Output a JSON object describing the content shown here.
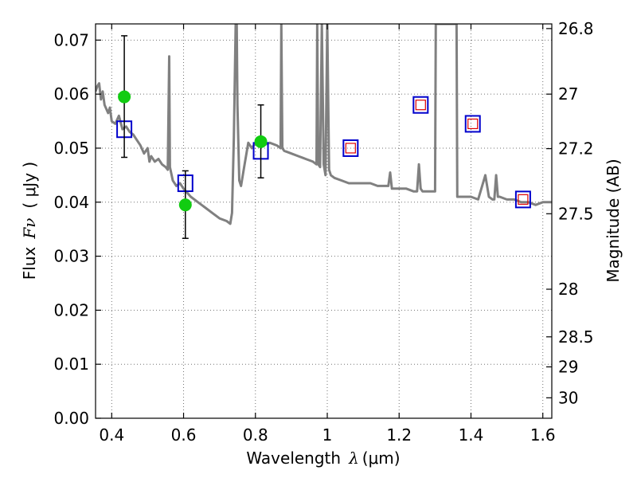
{
  "chart_data": {
    "type": "scatter",
    "xlabel": "Wavelength",
    "xlabel_math": "λ",
    "xlabel_unit": "(μm)",
    "ylabel": "Flux",
    "ylabel_math": "Fν",
    "ylabel_unit": "( μJy )",
    "y2label": "Magnitude (AB)",
    "xlim": [
      0.355,
      1.625
    ],
    "ylim": [
      0.0,
      0.073
    ],
    "x_ticks": [
      0.4,
      0.6,
      0.8,
      1.0,
      1.2,
      1.4,
      1.6
    ],
    "x_tick_labels": [
      "0.4",
      "0.6",
      "0.8",
      "1",
      "1.2",
      "1.4",
      "1.6"
    ],
    "y_ticks": [
      0.0,
      0.01,
      0.02,
      0.03,
      0.04,
      0.05,
      0.06,
      0.07
    ],
    "y_tick_labels": [
      "0.00",
      "0.01",
      "0.02",
      "0.03",
      "0.04",
      "0.05",
      "0.06",
      "0.07"
    ],
    "mag_ticks": [
      26.8,
      27,
      27.2,
      27.5,
      28,
      28.5,
      29,
      30
    ],
    "mag_tick_labels": [
      "26.8",
      "27",
      "27.2",
      "27.5",
      "28",
      "28.5",
      "29",
      "30"
    ],
    "grid": true,
    "colors": {
      "sed": "#808080",
      "observed": "#11cc11",
      "model_box": "#0000cc",
      "model_inner": "#dd0000",
      "errorbar": "#000000"
    },
    "series": [
      {
        "name": "SED model spectrum",
        "kind": "line",
        "x": [
          0.355,
          0.36,
          0.365,
          0.37,
          0.375,
          0.38,
          0.39,
          0.395,
          0.4,
          0.41,
          0.42,
          0.43,
          0.44,
          0.45,
          0.46,
          0.47,
          0.48,
          0.49,
          0.5,
          0.505,
          0.51,
          0.52,
          0.53,
          0.54,
          0.55,
          0.556,
          0.56,
          0.562,
          0.57,
          0.58,
          0.59,
          0.6,
          0.62,
          0.64,
          0.66,
          0.68,
          0.7,
          0.72,
          0.73,
          0.735,
          0.74,
          0.745,
          0.748,
          0.75,
          0.755,
          0.76,
          0.77,
          0.78,
          0.79,
          0.8,
          0.82,
          0.84,
          0.86,
          0.87,
          0.872,
          0.875,
          0.88,
          0.9,
          0.92,
          0.94,
          0.96,
          0.97,
          0.972,
          0.975,
          0.98,
          0.985,
          0.99,
          0.995,
          1.0,
          1.005,
          1.01,
          1.02,
          1.04,
          1.06,
          1.08,
          1.1,
          1.12,
          1.14,
          1.16,
          1.17,
          1.175,
          1.18,
          1.19,
          1.2,
          1.22,
          1.24,
          1.25,
          1.255,
          1.26,
          1.265,
          1.27,
          1.29,
          1.3,
          1.302,
          1.31,
          1.32,
          1.34,
          1.36,
          1.362,
          1.37,
          1.38,
          1.4,
          1.42,
          1.44,
          1.45,
          1.46,
          1.465,
          1.47,
          1.475,
          1.48,
          1.5,
          1.52,
          1.54,
          1.56,
          1.58,
          1.6,
          1.625
        ],
        "y": [
          0.0605,
          0.0615,
          0.062,
          0.059,
          0.0605,
          0.058,
          0.0565,
          0.0575,
          0.055,
          0.0545,
          0.056,
          0.0535,
          0.054,
          0.053,
          0.0525,
          0.0515,
          0.0505,
          0.049,
          0.05,
          0.0475,
          0.0485,
          0.0475,
          0.048,
          0.047,
          0.0465,
          0.046,
          0.067,
          0.0465,
          0.044,
          0.043,
          0.0435,
          0.0425,
          0.041,
          0.04,
          0.039,
          0.038,
          0.037,
          0.0365,
          0.036,
          0.038,
          0.052,
          0.073,
          0.073,
          0.058,
          0.044,
          0.043,
          0.047,
          0.051,
          0.05,
          0.051,
          0.0505,
          0.051,
          0.0505,
          0.05,
          0.073,
          0.05,
          0.0495,
          0.049,
          0.0485,
          0.048,
          0.0475,
          0.047,
          0.073,
          0.047,
          0.0465,
          0.073,
          0.047,
          0.045,
          0.073,
          0.046,
          0.045,
          0.0445,
          0.044,
          0.0435,
          0.0435,
          0.0435,
          0.0435,
          0.043,
          0.043,
          0.043,
          0.0455,
          0.0425,
          0.0425,
          0.0425,
          0.0425,
          0.042,
          0.042,
          0.047,
          0.0425,
          0.042,
          0.042,
          0.042,
          0.042,
          0.073,
          0.073,
          0.073,
          0.073,
          0.073,
          0.041,
          0.041,
          0.041,
          0.041,
          0.0405,
          0.045,
          0.041,
          0.0405,
          0.0405,
          0.045,
          0.041,
          0.041,
          0.0405,
          0.0405,
          0.04,
          0.04,
          0.0395,
          0.04,
          0.04
        ]
      },
      {
        "name": "Model photometry (boxes)",
        "kind": "square",
        "x": [
          0.435,
          0.605,
          0.815,
          1.065,
          1.26,
          1.405,
          1.545
        ],
        "y": [
          0.0535,
          0.0435,
          0.0495,
          0.05,
          0.058,
          0.0545,
          0.0405
        ]
      },
      {
        "name": "Observed photometry",
        "kind": "marker",
        "x": [
          0.435,
          0.605,
          0.815
        ],
        "y": [
          0.0595,
          0.0395,
          0.0512
        ],
        "yerr_low": [
          0.0483,
          0.0333,
          0.0445
        ],
        "yerr_high": [
          0.0708,
          0.0458,
          0.058
        ]
      }
    ]
  }
}
